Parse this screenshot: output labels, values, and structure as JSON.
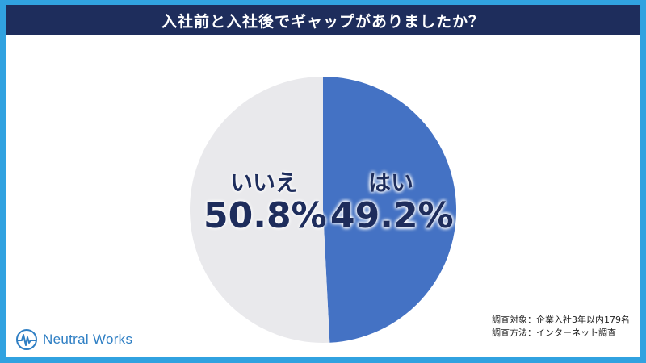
{
  "title": "入社前と入社後でギャップがありましたか？",
  "chart_data": {
    "type": "pie",
    "title": "入社前と入社後でギャップがありましたか？",
    "slices": [
      {
        "label": "はい",
        "value": 49.2,
        "display": "49.2%",
        "color": "#4472c4"
      },
      {
        "label": "いいえ",
        "value": 50.8,
        "display": "50.8%",
        "color": "#e9e9ec"
      }
    ]
  },
  "notes": {
    "line1": "調査対象：企業入社3年以内179名",
    "line2": "調査方法：インターネット調査"
  },
  "logo": {
    "text": "Neutral Works",
    "icon": "neutral-works-logo-icon"
  },
  "colors": {
    "frame": "#31a2e0",
    "title_bar": "#1e2d5c",
    "label_text": "#1e2d5c",
    "logo": "#2f7fc4"
  }
}
